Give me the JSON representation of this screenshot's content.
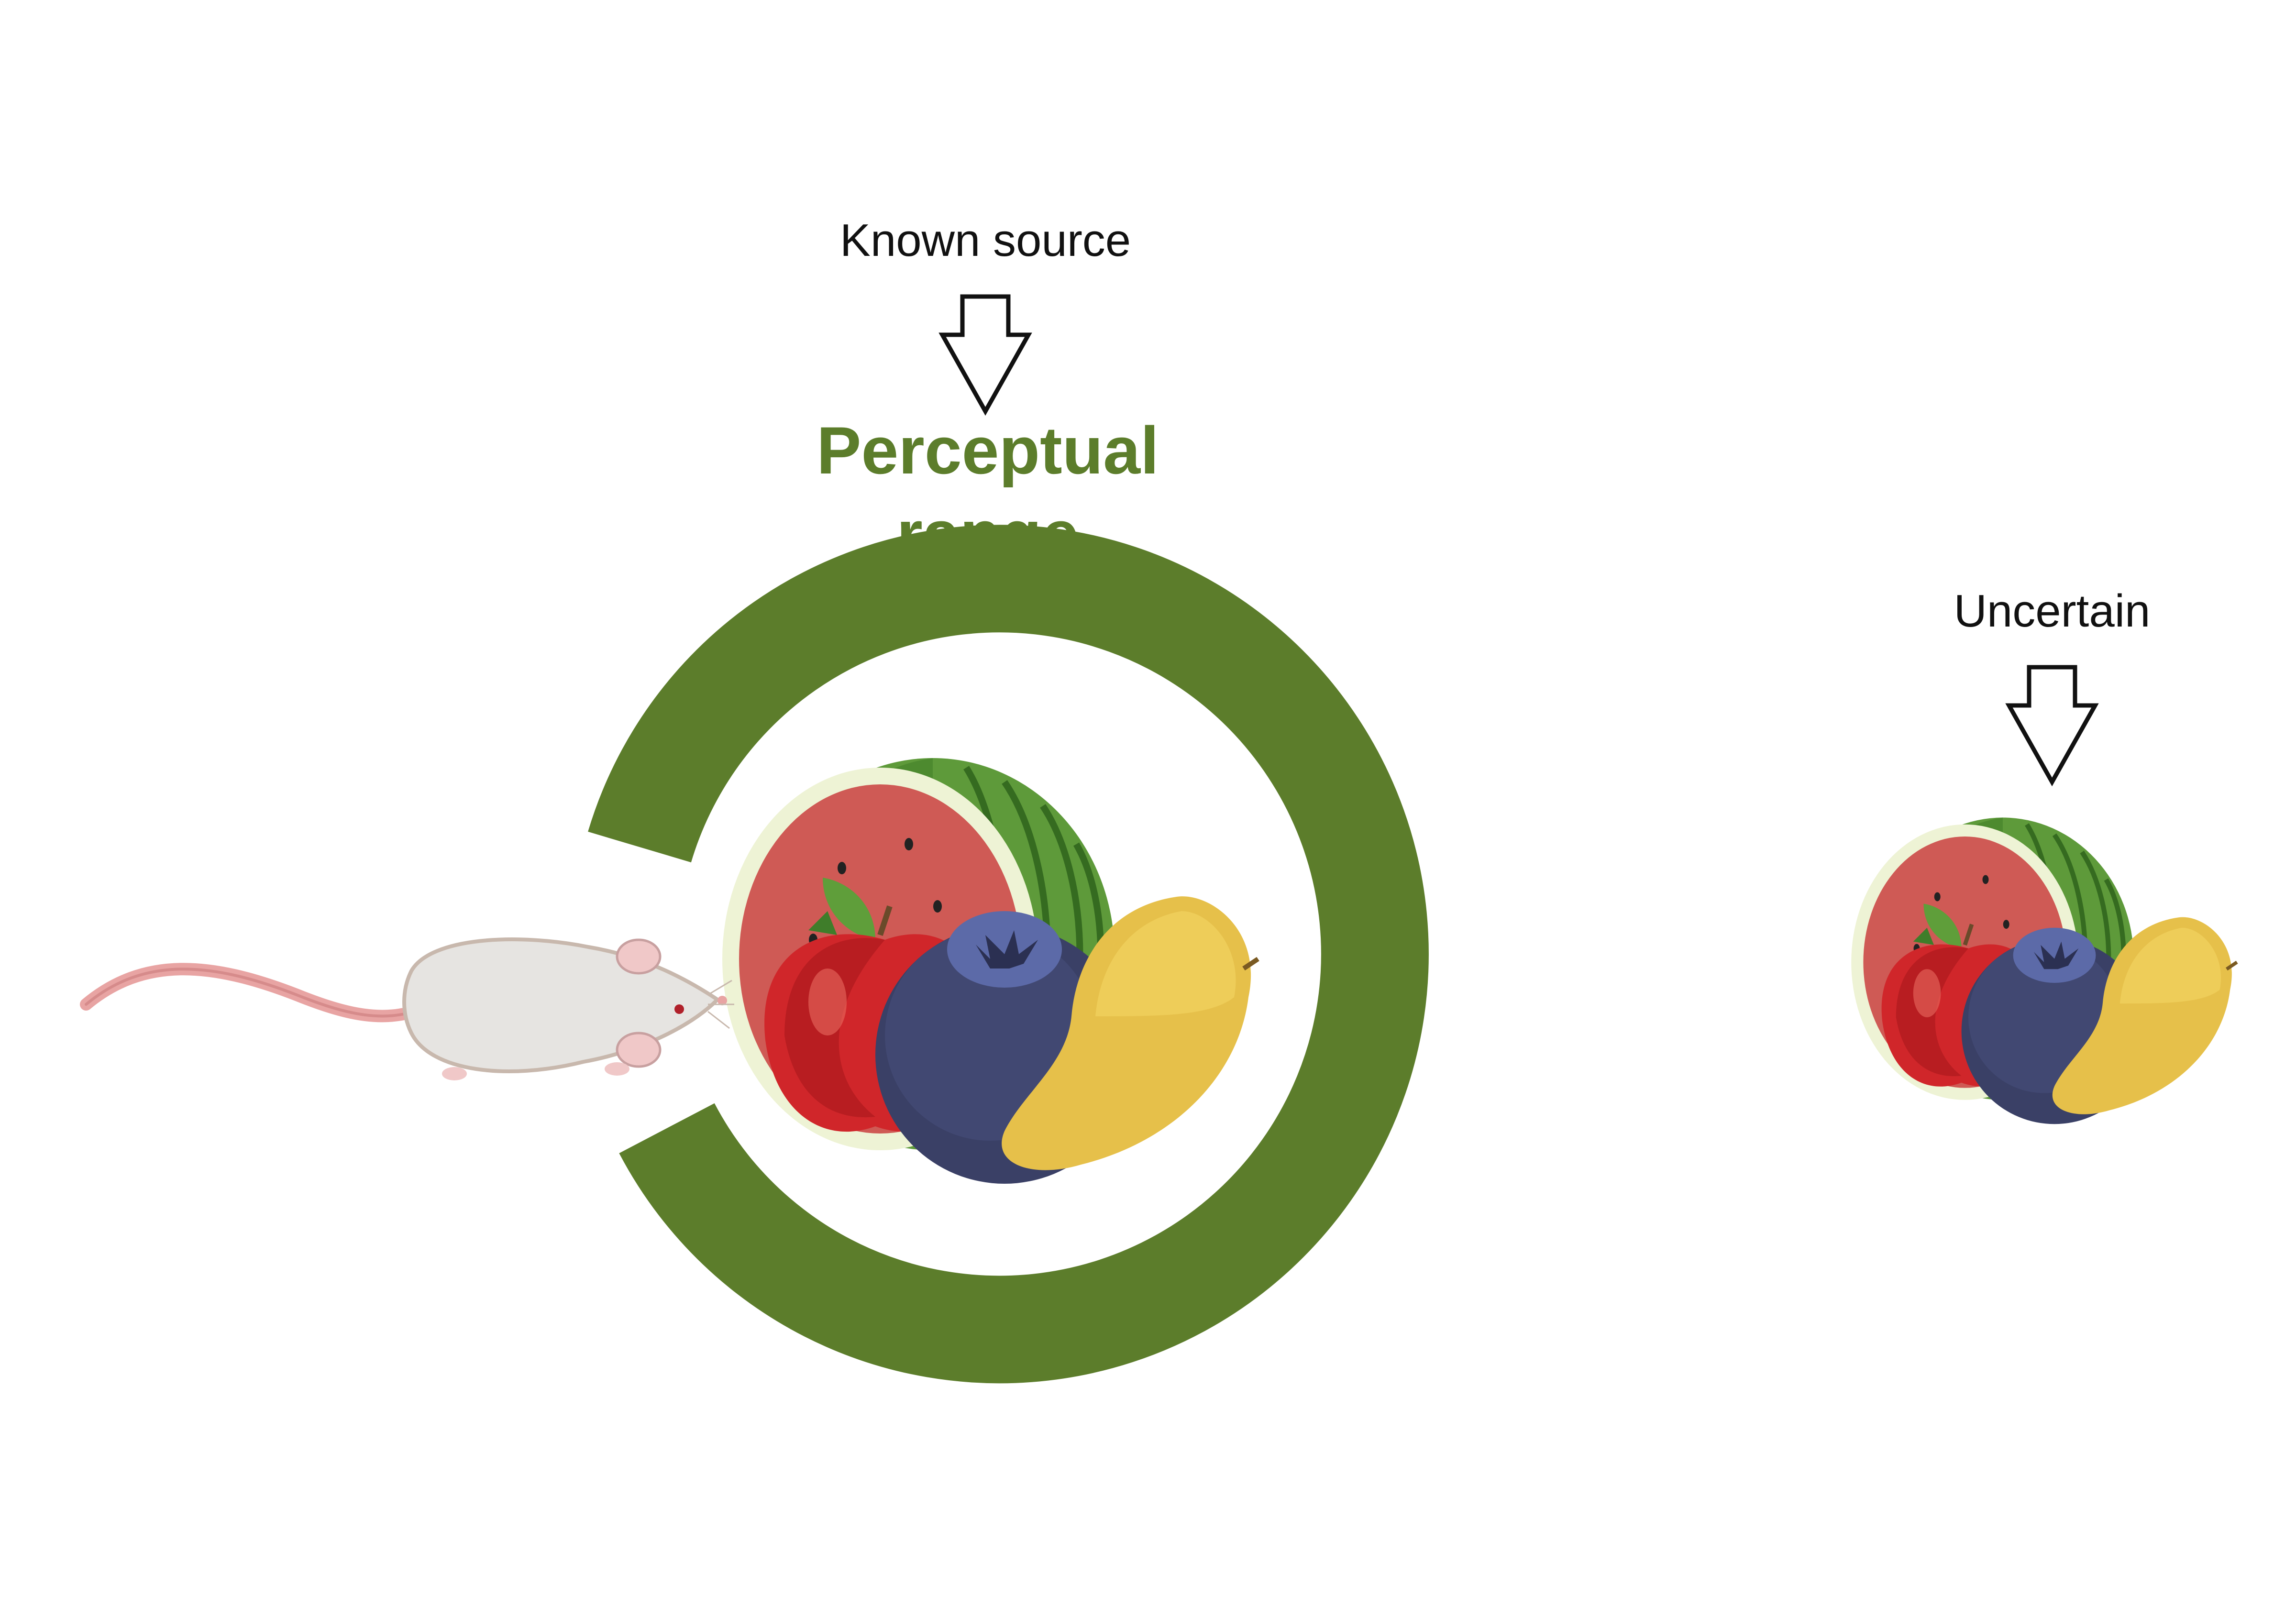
{
  "labels": {
    "known_source": "Known source",
    "perceptual_range_line1": "Perceptual",
    "perceptual_range_line2": "range",
    "uncertain": "Uncertain"
  },
  "colors": {
    "range_ring": "#5c7d2b",
    "range_text": "#5c7d2b",
    "text": "#111111",
    "arrow_stroke": "#111111",
    "background": "#ffffff"
  },
  "icons": {
    "animal": "rat-icon",
    "food": [
      "watermelon-icon",
      "apple-icon",
      "blueberry-icon",
      "mango-icon"
    ]
  }
}
